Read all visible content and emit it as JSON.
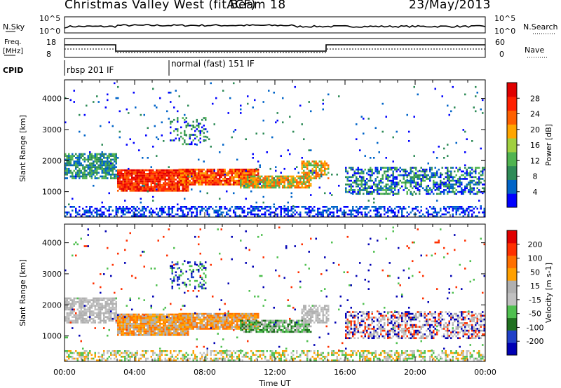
{
  "header": {
    "station": "Christmas Valley West (fitACF)",
    "beam": "Beam 18",
    "date": "23/May/2013"
  },
  "top_panel": {
    "left_label": "N.Sky",
    "right_label": "N.Search",
    "tick_hi": "10^5",
    "tick_lo": "10^0"
  },
  "freq_panel": {
    "left_label_1": "Freq.",
    "left_label_2": "[MHz]",
    "left_tick_hi": "18",
    "left_tick_lo": "8",
    "right_label": "Nave",
    "right_tick_hi": "60",
    "right_tick_lo": "0"
  },
  "cpid": {
    "label": "CPID",
    "mode_1": "rbsp 201 IF",
    "mode_2": "normal (fast) 151 IF"
  },
  "colors": {
    "power": [
      "#0000ff",
      "#0064c8",
      "#2e8b57",
      "#50b450",
      "#a0d040",
      "#ffa500",
      "#ff6000",
      "#ff2000",
      "#e00000"
    ],
    "velocity": [
      "#0000b4",
      "#2040c8",
      "#207020",
      "#50c050",
      "#c0c0c0",
      "#b0b0b0",
      "#ffa000",
      "#ff7000",
      "#ff3000",
      "#e00000"
    ]
  },
  "chart_data": [
    {
      "type": "heatmap",
      "name": "power",
      "ylabel": "Slant Range [km]",
      "yticks": [
        "4000",
        "3000",
        "2000",
        "1000"
      ],
      "ylim": [
        180,
        4600
      ],
      "colorbar_label": "Power [dB]",
      "colorbar_ticks": [
        "28",
        "24",
        "20",
        "16",
        "12",
        "8",
        "4"
      ],
      "colorbar_range": [
        0,
        32
      ]
    },
    {
      "type": "heatmap",
      "name": "velocity",
      "ylabel": "Slant Range [km]",
      "yticks": [
        "4000",
        "3000",
        "2000",
        "1000"
      ],
      "ylim": [
        180,
        4600
      ],
      "colorbar_label": "Velocity [m s-1]",
      "colorbar_ticks": [
        "200",
        "100",
        "50",
        "15",
        "-15",
        "-50",
        "-100",
        "-200"
      ]
    }
  ],
  "time_axis": {
    "ticks": [
      "00:00",
      "04:00",
      "08:00",
      "12:00",
      "16:00",
      "20:00",
      "00:00"
    ],
    "label": "Time UT"
  }
}
